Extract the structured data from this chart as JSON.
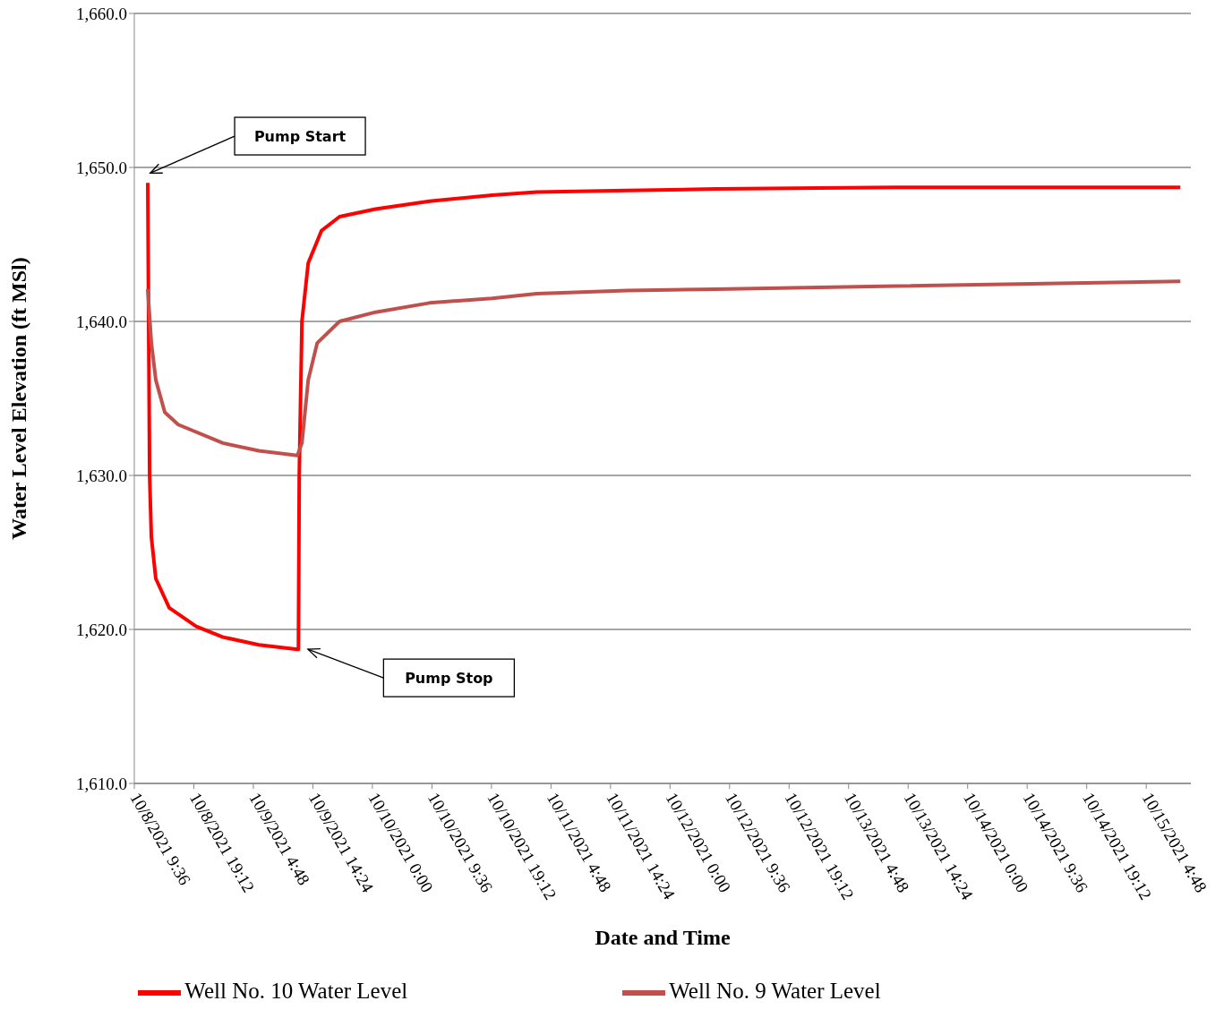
{
  "chart_data": {
    "type": "line",
    "xlabel": "Date and Time",
    "ylabel": "Water Level Elevation (ft MSl)",
    "xlim": [
      "2021-10-08T09:36",
      "2021-10-15T12:00"
    ],
    "xticks": [
      {
        "value": "2021-10-08T09:36",
        "label": "10/8/2021 9:36"
      },
      {
        "value": "2021-10-08T19:12",
        "label": "10/8/2021 19:12"
      },
      {
        "value": "2021-10-09T04:48",
        "label": "10/9/2021 4:48"
      },
      {
        "value": "2021-10-09T14:24",
        "label": "10/9/2021 14:24"
      },
      {
        "value": "2021-10-10T00:00",
        "label": "10/10/2021 0:00"
      },
      {
        "value": "2021-10-10T09:36",
        "label": "10/10/2021 9:36"
      },
      {
        "value": "2021-10-10T19:12",
        "label": "10/10/2021 19:12"
      },
      {
        "value": "2021-10-11T04:48",
        "label": "10/11/2021 4:48"
      },
      {
        "value": "2021-10-11T14:24",
        "label": "10/11/2021 14:24"
      },
      {
        "value": "2021-10-12T00:00",
        "label": "10/12/2021 0:00"
      },
      {
        "value": "2021-10-12T09:36",
        "label": "10/12/2021 9:36"
      },
      {
        "value": "2021-10-12T19:12",
        "label": "10/12/2021 19:12"
      },
      {
        "value": "2021-10-13T04:48",
        "label": "10/13/2021 4:48"
      },
      {
        "value": "2021-10-13T14:24",
        "label": "10/13/2021 14:24"
      },
      {
        "value": "2021-10-14T00:00",
        "label": "10/14/2021 0:00"
      },
      {
        "value": "2021-10-14T09:36",
        "label": "10/14/2021 9:36"
      },
      {
        "value": "2021-10-14T19:12",
        "label": "10/14/2021 19:12"
      },
      {
        "value": "2021-10-15T04:48",
        "label": "10/15/2021 4:48"
      }
    ],
    "ylim": [
      1610,
      1660
    ],
    "yticks": [
      {
        "value": 1610,
        "label": "1,610.0"
      },
      {
        "value": 1620,
        "label": "1,620.0"
      },
      {
        "value": 1630,
        "label": "1,630.0"
      },
      {
        "value": 1640,
        "label": "1,640.0"
      },
      {
        "value": 1650,
        "label": "1,650.0"
      },
      {
        "value": 1660,
        "label": "1,660.0"
      }
    ],
    "grid": "y",
    "legend": "bottom",
    "marker": "none",
    "line_style": "solid",
    "series": [
      {
        "name": "Well No. 10 Water Level",
        "color": "#ff0000",
        "x": [
          "2021-10-08T11:46",
          "2021-10-08T12:04",
          "2021-10-08T12:21",
          "2021-10-08T13:04",
          "2021-10-08T15:14",
          "2021-10-08T19:35",
          "2021-10-08T23:54",
          "2021-10-09T05:42",
          "2021-10-09T11:54",
          "2021-10-09T12:04",
          "2021-10-09T12:12",
          "2021-10-09T12:38",
          "2021-10-09T13:39",
          "2021-10-09T15:48",
          "2021-10-09T18:42",
          "2021-10-10T00:30",
          "2021-10-10T09:12",
          "2021-10-10T19:18",
          "2021-10-11T02:30",
          "2021-10-11T16:59",
          "2021-10-12T07:24",
          "2021-10-13T12:18",
          "2021-10-15T10:18"
        ],
        "values": [
          1649.0,
          1630.0,
          1626.0,
          1623.3,
          1621.4,
          1620.2,
          1619.5,
          1619.0,
          1618.7,
          1618.7,
          1630.0,
          1640.0,
          1643.8,
          1645.9,
          1646.8,
          1647.3,
          1647.8,
          1648.2,
          1648.4,
          1648.5,
          1648.6,
          1648.7,
          1648.7
        ]
      },
      {
        "name": "Well No. 9 Water Level",
        "color": "#c0504d",
        "x": [
          "2021-10-08T11:46",
          "2021-10-08T12:21",
          "2021-10-08T13:04",
          "2021-10-08T14:31",
          "2021-10-08T16:41",
          "2021-10-08T23:54",
          "2021-10-09T05:42",
          "2021-10-09T11:54",
          "2021-10-09T12:38",
          "2021-10-09T13:39",
          "2021-10-09T15:06",
          "2021-10-09T18:42",
          "2021-10-10T00:30",
          "2021-10-10T09:12",
          "2021-10-10T19:18",
          "2021-10-11T02:30",
          "2021-10-11T16:59",
          "2021-10-12T07:24",
          "2021-10-13T12:18",
          "2021-10-15T10:18"
        ],
        "values": [
          1642.1,
          1638.6,
          1636.2,
          1634.1,
          1633.3,
          1632.1,
          1631.6,
          1631.3,
          1632.1,
          1636.2,
          1638.6,
          1640.0,
          1640.6,
          1641.2,
          1641.5,
          1641.8,
          1642.0,
          1642.1,
          1642.3,
          1642.6
        ]
      }
    ],
    "annotations": [
      "Pump Start",
      "Pump Stop"
    ]
  }
}
